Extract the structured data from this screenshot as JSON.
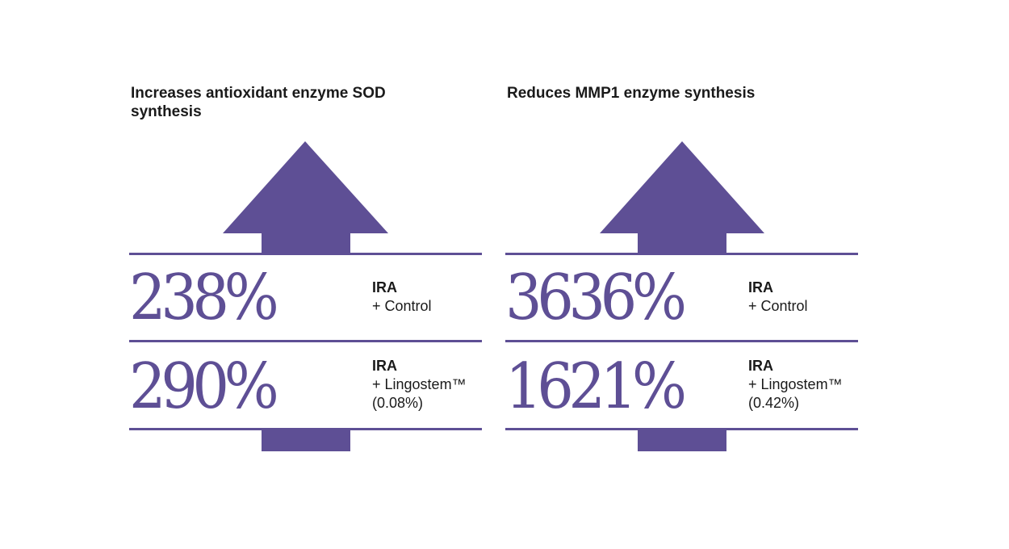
{
  "panels": [
    {
      "title": "Increases antioxidant enzyme SOD synthesis",
      "rows": [
        {
          "value": "238%",
          "label_main": "IRA",
          "label_sub": "+ Control",
          "label_extra": ""
        },
        {
          "value": "290%",
          "label_main": "IRA",
          "label_sub": "+ Lingostem™",
          "label_extra": "(0.08%)"
        }
      ]
    },
    {
      "title": "Reduces MMP1 enzyme synthesis",
      "rows": [
        {
          "value": "3636%",
          "label_main": "IRA",
          "label_sub": "+ Control",
          "label_extra": ""
        },
        {
          "value": "1621%",
          "label_main": "IRA",
          "label_sub": "+ Lingostem™",
          "label_extra": "(0.42%)"
        }
      ]
    }
  ],
  "colors": {
    "accent": "#5e4f95",
    "text": "#1a1a1a",
    "background": "#ffffff"
  }
}
